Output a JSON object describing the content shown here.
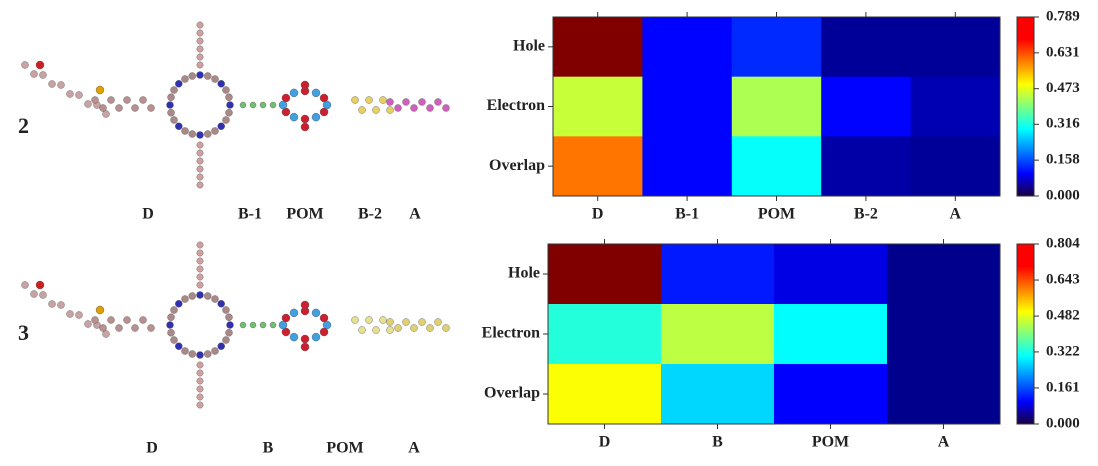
{
  "chart_data": [
    {
      "type": "heatmap",
      "panel_label": "2",
      "fragment_labels": [
        "D",
        "B-1",
        "POM",
        "B-2",
        "A"
      ],
      "categories": [
        "D",
        "B-1",
        "POM",
        "B-2",
        "A"
      ],
      "rows": [
        "Hole",
        "Electron",
        "Overlap"
      ],
      "values": [
        [
          0.789,
          0.1,
          0.13,
          0.02,
          0.02
        ],
        [
          0.45,
          0.1,
          0.43,
          0.1,
          0.04
        ],
        [
          0.6,
          0.1,
          0.3,
          0.03,
          0.02
        ]
      ],
      "zlim": [
        0,
        0.789
      ],
      "zticks": [
        {
          "value": 0,
          "label": "0.000"
        },
        0.158,
        0.316,
        0.473,
        0.631,
        0.789
      ]
    },
    {
      "type": "heatmap",
      "panel_label": "3",
      "fragment_labels": [
        "D",
        "B",
        "POM",
        "A"
      ],
      "categories": [
        "D",
        "B",
        "POM",
        "A"
      ],
      "rows": [
        "Hole",
        "Electron",
        "Overlap"
      ],
      "values": [
        [
          0.804,
          0.12,
          0.08,
          0.01
        ],
        [
          0.33,
          0.45,
          0.3,
          0.01
        ],
        [
          0.5,
          0.27,
          0.1,
          0.01
        ]
      ],
      "zlim": [
        0,
        0.804
      ],
      "zticks": [
        {
          "value": 0,
          "label": "0.000"
        },
        0.161,
        0.322,
        0.482,
        0.643,
        0.804
      ]
    }
  ]
}
